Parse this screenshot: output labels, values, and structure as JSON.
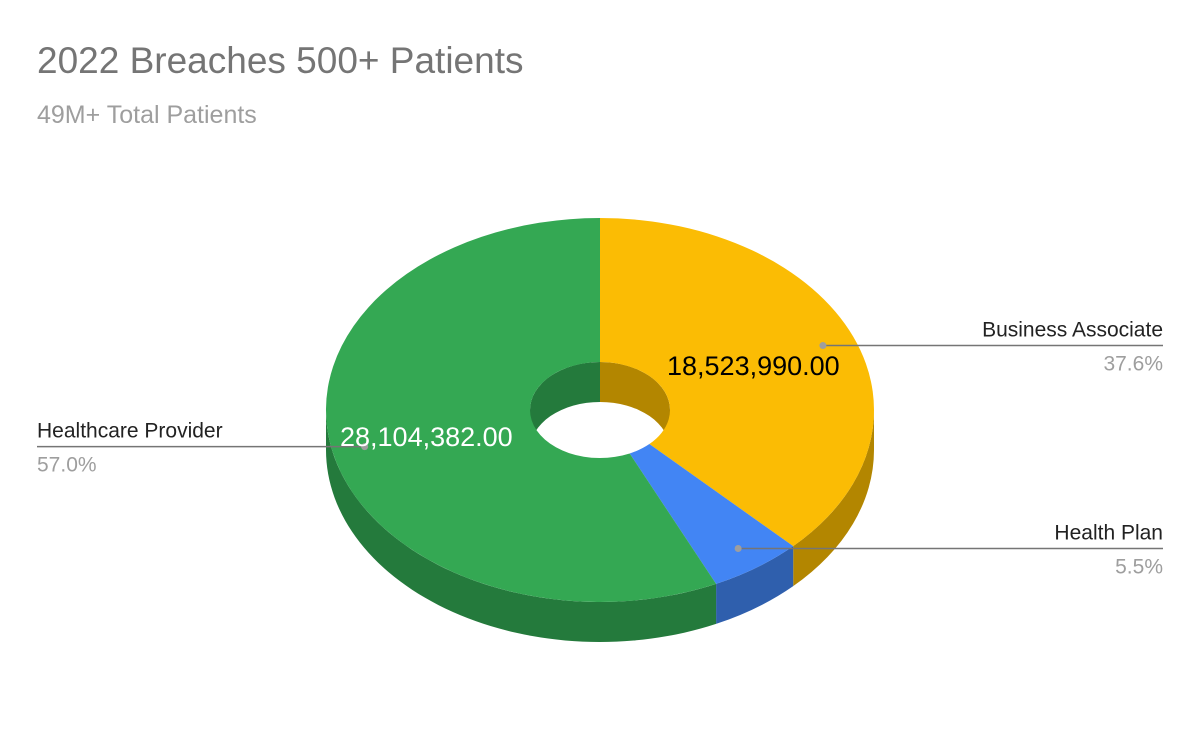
{
  "title": "2022 Breaches 500+ Patients",
  "subtitle": "49M+ Total Patients",
  "chart_data": {
    "type": "pie",
    "style": "3d-donut",
    "legend": "none",
    "slices": [
      {
        "name": "Business Associate",
        "value": 18523990,
        "value_label": "18,523,990.00",
        "percent_label": "37.6%",
        "color": "#fbbc04",
        "side_color": "#b38600",
        "value_text_color": "#000000"
      },
      {
        "name": "Health Plan",
        "value": 2709140,
        "value_label": "",
        "percent_label": "5.5%",
        "color": "#4285f4",
        "side_color": "#2f5fad",
        "value_text_color": "#ffffff"
      },
      {
        "name": "Healthcare Provider",
        "value": 28104382,
        "value_label": "28,104,382.00",
        "percent_label": "57.0%",
        "color": "#34a853",
        "side_color": "#247a3c",
        "value_text_color": "#ffffff"
      }
    ]
  }
}
